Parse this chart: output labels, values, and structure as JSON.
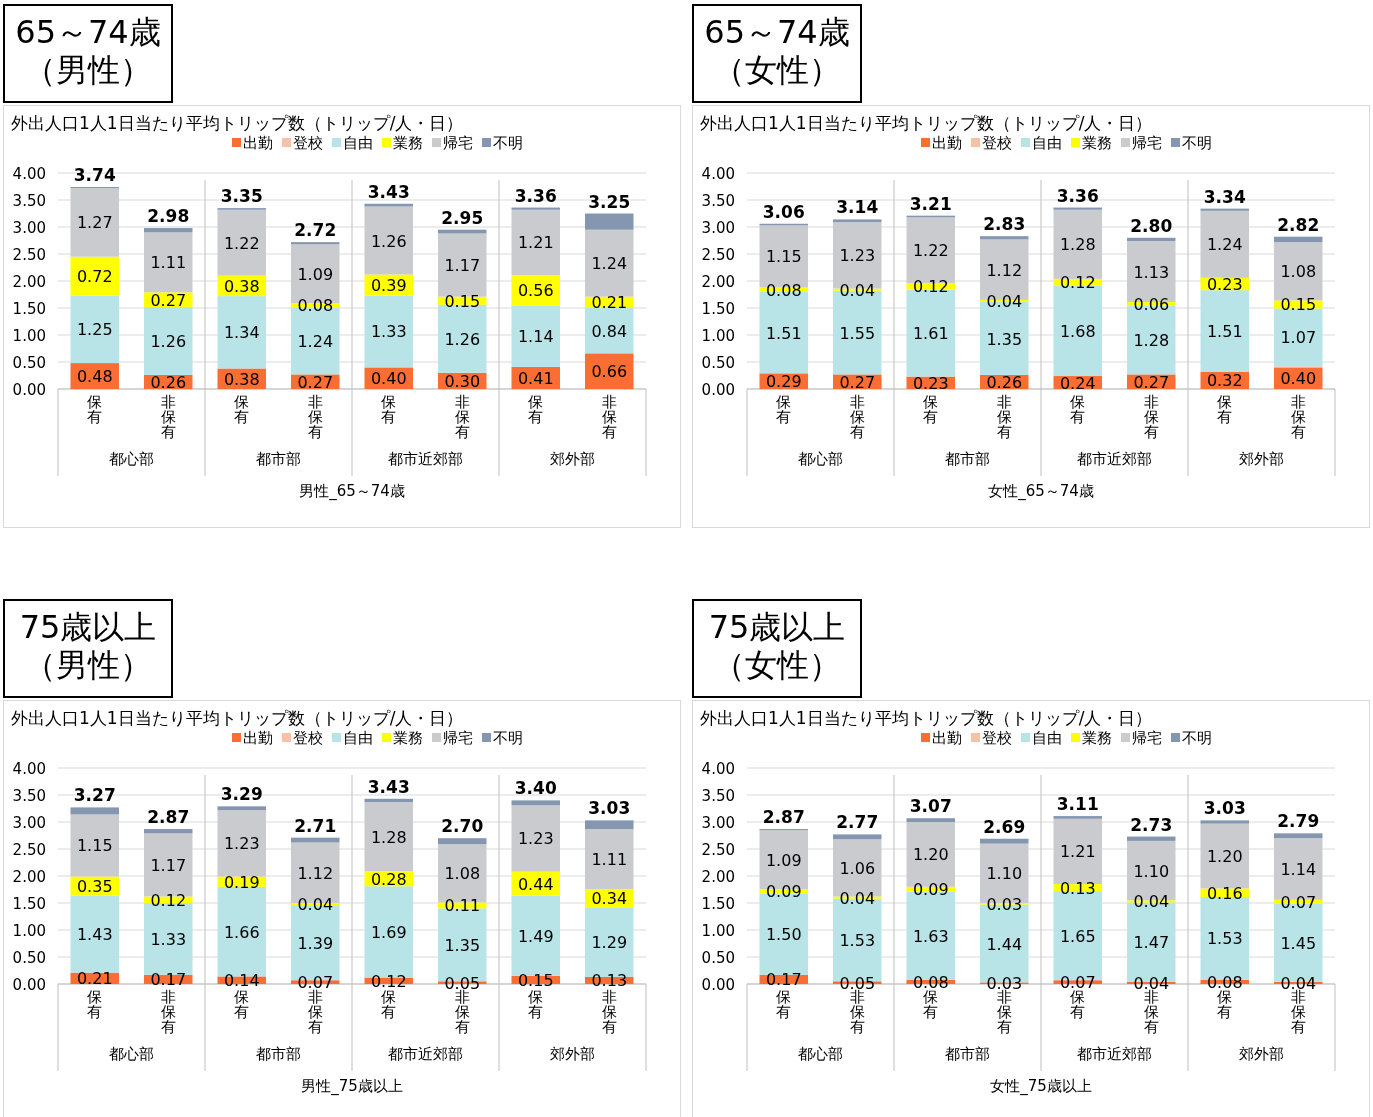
{
  "chart_data": [
    {
      "type": "bar",
      "stacked": true,
      "title": "65～74歳（男性）",
      "subtitle": "外出人口1人1日当たり平均トリップ数（トリップ/人・日）",
      "xlabel": "男性_65～74歳",
      "legend": "top",
      "grid": "y",
      "ylim": [
        0,
        4
      ],
      "yticks": [
        {
          "value": 0,
          "label": "0.00"
        },
        {
          "value": 0.5,
          "label": "0.50"
        },
        {
          "value": 1,
          "label": "1.00"
        },
        {
          "value": 1.5,
          "label": "1.50"
        },
        {
          "value": 2,
          "label": "2.00"
        },
        {
          "value": 2.5,
          "label": "2.50"
        },
        {
          "value": 3,
          "label": "3.00"
        },
        {
          "value": 3.5,
          "label": "3.50"
        },
        {
          "value": 4,
          "label": "4.00"
        }
      ],
      "categories": [
        "保有",
        "非保有",
        "保有",
        "非保有",
        "保有",
        "非保有",
        "保有",
        "非保有"
      ],
      "annotations": [
        "都心部",
        "都市部",
        "都市近郊部",
        "郊外部"
      ],
      "series": [
        {
          "name": "出勤",
          "color": "#fa6e34",
          "values": [
            0.48,
            0.26,
            0.38,
            0.27,
            0.4,
            0.3,
            0.41,
            0.66
          ],
          "value_labels": [
            "0.48",
            "0.26",
            "0.38",
            "0.27",
            "0.40",
            "0.30",
            "0.41",
            "0.66"
          ]
        },
        {
          "name": "登校",
          "color": "#f8c0a4",
          "values": [
            0,
            0,
            0,
            0,
            0,
            0,
            0,
            0
          ]
        },
        {
          "name": "自由",
          "color": "#b8e4e8",
          "values": [
            1.25,
            1.26,
            1.34,
            1.24,
            1.33,
            1.26,
            1.14,
            0.84
          ],
          "value_labels": [
            "1.25",
            "1.26",
            "1.34",
            "1.24",
            "1.33",
            "1.26",
            "1.14",
            "0.84"
          ]
        },
        {
          "name": "業務",
          "color": "#ffff00",
          "values": [
            0.72,
            0.27,
            0.38,
            0.08,
            0.39,
            0.15,
            0.56,
            0.21
          ],
          "value_labels": [
            "0.72",
            "0.27",
            "0.38",
            "0.08",
            "0.39",
            "0.15",
            "0.56",
            "0.21"
          ]
        },
        {
          "name": "帰宅",
          "color": "#c9cbcf",
          "values": [
            1.27,
            1.11,
            1.22,
            1.09,
            1.26,
            1.17,
            1.21,
            1.24
          ],
          "value_labels": [
            "1.27",
            "1.11",
            "1.22",
            "1.09",
            "1.26",
            "1.17",
            "1.21",
            "1.24"
          ]
        },
        {
          "name": "不明",
          "color": "#8496b0",
          "values": [
            0.02,
            0.08,
            0.03,
            0.04,
            0.05,
            0.07,
            0.04,
            0.3
          ]
        }
      ],
      "totals": [
        "3.74",
        "2.98",
        "3.35",
        "2.72",
        "3.43",
        "2.95",
        "3.36",
        "3.25"
      ]
    },
    {
      "type": "bar",
      "stacked": true,
      "title": "65～74歳（女性）",
      "subtitle": "外出人口1人1日当たり平均トリップ数（トリップ/人・日）",
      "xlabel": "女性_65～74歳",
      "legend": "top",
      "grid": "y",
      "ylim": [
        0,
        4
      ],
      "yticks": [
        {
          "value": 0,
          "label": "0.00"
        },
        {
          "value": 0.5,
          "label": "0.50"
        },
        {
          "value": 1,
          "label": "1.00"
        },
        {
          "value": 1.5,
          "label": "1.50"
        },
        {
          "value": 2,
          "label": "2.00"
        },
        {
          "value": 2.5,
          "label": "2.50"
        },
        {
          "value": 3,
          "label": "3.00"
        },
        {
          "value": 3.5,
          "label": "3.50"
        },
        {
          "value": 4,
          "label": "4.00"
        }
      ],
      "categories": [
        "保有",
        "非保有",
        "保有",
        "非保有",
        "保有",
        "非保有",
        "保有",
        "非保有"
      ],
      "annotations": [
        "都心部",
        "都市部",
        "都市近郊部",
        "郊外部"
      ],
      "series": [
        {
          "name": "出勤",
          "color": "#fa6e34",
          "values": [
            0.29,
            0.27,
            0.23,
            0.26,
            0.24,
            0.27,
            0.32,
            0.4
          ],
          "value_labels": [
            "0.29",
            "0.27",
            "0.23",
            "0.26",
            "0.24",
            "0.27",
            "0.32",
            "0.40"
          ]
        },
        {
          "name": "登校",
          "color": "#f8c0a4",
          "values": [
            0,
            0,
            0,
            0,
            0,
            0,
            0,
            0.02
          ]
        },
        {
          "name": "自由",
          "color": "#b8e4e8",
          "values": [
            1.51,
            1.55,
            1.61,
            1.35,
            1.68,
            1.28,
            1.51,
            1.07
          ],
          "value_labels": [
            "1.51",
            "1.55",
            "1.61",
            "1.35",
            "1.68",
            "1.28",
            "1.51",
            "1.07"
          ]
        },
        {
          "name": "業務",
          "color": "#ffff00",
          "values": [
            0.08,
            0.04,
            0.12,
            0.04,
            0.12,
            0.06,
            0.23,
            0.15
          ],
          "value_labels": [
            "0.08",
            "0.04",
            "0.12",
            "0.04",
            "0.12",
            "0.06",
            "0.23",
            "0.15"
          ]
        },
        {
          "name": "帰宅",
          "color": "#c9cbcf",
          "values": [
            1.15,
            1.23,
            1.22,
            1.12,
            1.28,
            1.13,
            1.24,
            1.08
          ],
          "value_labels": [
            "1.15",
            "1.23",
            "1.22",
            "1.12",
            "1.28",
            "1.13",
            "1.24",
            "1.08"
          ]
        },
        {
          "name": "不明",
          "color": "#8496b0",
          "values": [
            0.03,
            0.05,
            0.03,
            0.06,
            0.04,
            0.06,
            0.04,
            0.1
          ]
        }
      ],
      "totals": [
        "3.06",
        "3.14",
        "3.21",
        "2.83",
        "3.36",
        "2.80",
        "3.34",
        "2.82"
      ]
    },
    {
      "type": "bar",
      "stacked": true,
      "title": "75歳以上（男性）",
      "subtitle": "外出人口1人1日当たり平均トリップ数（トリップ/人・日）",
      "xlabel": "男性_75歳以上",
      "legend": "top",
      "grid": "y",
      "ylim": [
        0,
        4
      ],
      "yticks": [
        {
          "value": 0,
          "label": "0.00"
        },
        {
          "value": 0.5,
          "label": "0.50"
        },
        {
          "value": 1,
          "label": "1.00"
        },
        {
          "value": 1.5,
          "label": "1.50"
        },
        {
          "value": 2,
          "label": "2.00"
        },
        {
          "value": 2.5,
          "label": "2.50"
        },
        {
          "value": 3,
          "label": "3.00"
        },
        {
          "value": 3.5,
          "label": "3.50"
        },
        {
          "value": 4,
          "label": "4.00"
        }
      ],
      "categories": [
        "保有",
        "非保有",
        "保有",
        "非保有",
        "保有",
        "非保有",
        "保有",
        "非保有"
      ],
      "annotations": [
        "都心部",
        "都市部",
        "都市近郊部",
        "郊外部"
      ],
      "series": [
        {
          "name": "出勤",
          "color": "#fa6e34",
          "values": [
            0.21,
            0.17,
            0.14,
            0.07,
            0.12,
            0.05,
            0.15,
            0.13
          ],
          "value_labels": [
            "0.21",
            "0.17",
            "0.14",
            "0.07",
            "0.12",
            "0.05",
            "0.15",
            "0.13"
          ]
        },
        {
          "name": "登校",
          "color": "#f8c0a4",
          "values": [
            0,
            0,
            0,
            0,
            0,
            0,
            0,
            0
          ]
        },
        {
          "name": "自由",
          "color": "#b8e4e8",
          "values": [
            1.43,
            1.33,
            1.66,
            1.39,
            1.69,
            1.35,
            1.49,
            1.29
          ],
          "value_labels": [
            "1.43",
            "1.33",
            "1.66",
            "1.39",
            "1.69",
            "1.35",
            "1.49",
            "1.29"
          ]
        },
        {
          "name": "業務",
          "color": "#ffff00",
          "values": [
            0.35,
            0.12,
            0.19,
            0.04,
            0.28,
            0.11,
            0.44,
            0.34
          ],
          "value_labels": [
            "0.35",
            "0.12",
            "0.19",
            "0.04",
            "0.28",
            "0.11",
            "0.44",
            "0.34"
          ]
        },
        {
          "name": "帰宅",
          "color": "#c9cbcf",
          "values": [
            1.15,
            1.17,
            1.23,
            1.12,
            1.28,
            1.08,
            1.23,
            1.11
          ],
          "value_labels": [
            "1.15",
            "1.17",
            "1.23",
            "1.12",
            "1.28",
            "1.08",
            "1.23",
            "1.11"
          ]
        },
        {
          "name": "不明",
          "color": "#8496b0",
          "values": [
            0.13,
            0.08,
            0.07,
            0.09,
            0.06,
            0.11,
            0.09,
            0.16
          ]
        }
      ],
      "totals": [
        "3.27",
        "2.87",
        "3.29",
        "2.71",
        "3.43",
        "2.70",
        "3.40",
        "3.03"
      ]
    },
    {
      "type": "bar",
      "stacked": true,
      "title": "75歳以上（女性）",
      "subtitle": "外出人口1人1日当たり平均トリップ数（トリップ/人・日）",
      "xlabel": "女性_75歳以上",
      "legend": "top",
      "grid": "y",
      "ylim": [
        0,
        4
      ],
      "yticks": [
        {
          "value": 0,
          "label": "0.00"
        },
        {
          "value": 0.5,
          "label": "0.50"
        },
        {
          "value": 1,
          "label": "1.00"
        },
        {
          "value": 1.5,
          "label": "1.50"
        },
        {
          "value": 2,
          "label": "2.00"
        },
        {
          "value": 2.5,
          "label": "2.50"
        },
        {
          "value": 3,
          "label": "3.00"
        },
        {
          "value": 3.5,
          "label": "3.50"
        },
        {
          "value": 4,
          "label": "4.00"
        }
      ],
      "categories": [
        "保有",
        "非保有",
        "保有",
        "非保有",
        "保有",
        "非保有",
        "保有",
        "非保有"
      ],
      "annotations": [
        "都心部",
        "都市部",
        "都市近郊部",
        "郊外部"
      ],
      "series": [
        {
          "name": "出勤",
          "color": "#fa6e34",
          "values": [
            0.17,
            0.05,
            0.08,
            0.03,
            0.07,
            0.04,
            0.08,
            0.04
          ],
          "value_labels": [
            "0.17",
            "0.05",
            "0.08",
            "0.03",
            "0.07",
            "0.04",
            "0.08",
            "0.04"
          ]
        },
        {
          "name": "登校",
          "color": "#f8c0a4",
          "values": [
            0,
            0,
            0,
            0,
            0,
            0,
            0,
            0
          ]
        },
        {
          "name": "自由",
          "color": "#b8e4e8",
          "values": [
            1.5,
            1.53,
            1.63,
            1.44,
            1.65,
            1.47,
            1.53,
            1.45
          ],
          "value_labels": [
            "1.50",
            "1.53",
            "1.63",
            "1.44",
            "1.65",
            "1.47",
            "1.53",
            "1.45"
          ]
        },
        {
          "name": "業務",
          "color": "#ffff00",
          "values": [
            0.09,
            0.04,
            0.09,
            0.03,
            0.13,
            0.04,
            0.16,
            0.07
          ],
          "value_labels": [
            "0.09",
            "0.04",
            "0.09",
            "0.03",
            "0.13",
            "0.04",
            "0.16",
            "0.07"
          ]
        },
        {
          "name": "帰宅",
          "color": "#c9cbcf",
          "values": [
            1.09,
            1.06,
            1.2,
            1.1,
            1.21,
            1.1,
            1.2,
            1.14
          ],
          "value_labels": [
            "1.09",
            "1.06",
            "1.20",
            "1.10",
            "1.21",
            "1.10",
            "1.20",
            "1.14"
          ]
        },
        {
          "name": "不明",
          "color": "#8496b0",
          "values": [
            0.02,
            0.09,
            0.07,
            0.09,
            0.05,
            0.08,
            0.06,
            0.09
          ]
        }
      ],
      "totals": [
        "2.87",
        "2.77",
        "3.07",
        "2.69",
        "3.11",
        "2.73",
        "3.03",
        "2.79"
      ]
    }
  ]
}
